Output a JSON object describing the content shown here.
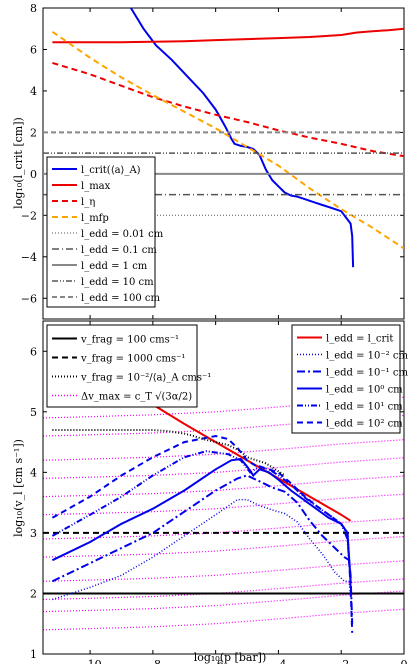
{
  "chart_data": [
    {
      "type": "line",
      "ylabel": "log₁₀(l_crit [cm])",
      "xlim": [
        -11.5,
        0
      ],
      "ylim": [
        -7,
        8
      ],
      "yticks": [
        -6,
        -4,
        -2,
        0,
        2,
        4,
        6,
        8
      ],
      "ytick_labels": [
        "−6",
        "−4",
        "−2",
        "0",
        "2",
        "4",
        "6",
        "8"
      ],
      "grid": false,
      "legend_position": "lower-left",
      "series": [
        {
          "name": "l_crit(⟨a⟩_A)",
          "color": "#0000ee",
          "dash": "",
          "width": 2,
          "x": [
            -8.7,
            -8.3,
            -7.9,
            -7.4,
            -6.9,
            -6.4,
            -6.0,
            -5.7,
            -5.5,
            -5.4,
            -5.2,
            -5.0,
            -4.8,
            -4.6,
            -4.4,
            -4.2,
            -4.0,
            -3.8,
            -3.6,
            -3.4,
            -3.2,
            -3.0,
            -2.8,
            -2.6,
            -2.4,
            -2.2,
            -2.0,
            -1.85,
            -1.75,
            -1.7,
            -1.65,
            -1.62
          ],
          "y": [
            8,
            7.0,
            6.2,
            5.5,
            4.7,
            3.9,
            3.1,
            2.3,
            1.7,
            1.45,
            1.35,
            1.3,
            1.2,
            0.9,
            0.2,
            -0.3,
            -0.6,
            -0.9,
            -1.05,
            -1.1,
            -1.2,
            -1.3,
            -1.4,
            -1.5,
            -1.6,
            -1.7,
            -1.8,
            -2.1,
            -2.3,
            -2.4,
            -3.0,
            -4.5
          ]
        },
        {
          "name": "l_max",
          "color": "#ee0000",
          "dash": "",
          "width": 2,
          "x": [
            -11.2,
            -10,
            -9,
            -8,
            -7,
            -6,
            -5,
            -4,
            -3,
            -2,
            -1.5,
            -1.0,
            -0.5,
            0
          ],
          "y": [
            6.35,
            6.35,
            6.35,
            6.37,
            6.4,
            6.45,
            6.5,
            6.55,
            6.6,
            6.7,
            6.82,
            6.88,
            6.93,
            7.0
          ]
        },
        {
          "name": "l_η",
          "color": "#ee0000",
          "dash": "6,4",
          "width": 2,
          "x": [
            -11.2,
            -10,
            -9,
            -8,
            -7,
            -6,
            -5,
            -4,
            -3,
            -2,
            -1,
            0
          ],
          "y": [
            5.35,
            4.8,
            4.25,
            3.7,
            3.25,
            2.85,
            2.5,
            2.1,
            1.75,
            1.45,
            1.1,
            0.85
          ]
        },
        {
          "name": "l_mfp",
          "color": "#ffa500",
          "dash": "6,4",
          "width": 2,
          "x": [
            -11.2,
            -10,
            -9,
            -8,
            -7,
            -6,
            -5,
            -4,
            -3,
            -2,
            -1,
            0
          ],
          "y": [
            6.85,
            5.6,
            4.65,
            3.8,
            3.0,
            2.2,
            1.3,
            0.4,
            -0.7,
            -1.7,
            -2.6,
            -3.6
          ]
        },
        {
          "name": "l_edd = 0.01 cm",
          "color": "#555555",
          "dash": "1,2",
          "width": 1,
          "x": [
            -11.5,
            0
          ],
          "y": [
            -2,
            -2
          ]
        },
        {
          "name": "l_edd = 0.1 cm",
          "color": "#555555",
          "dash": "7,3,1,3",
          "width": 1.5,
          "x": [
            -11.5,
            0
          ],
          "y": [
            -1,
            -1
          ]
        },
        {
          "name": "l_edd = 1 cm",
          "color": "#888888",
          "dash": "",
          "width": 2,
          "x": [
            -11.5,
            0
          ],
          "y": [
            0,
            0
          ]
        },
        {
          "name": "l_edd = 10 cm",
          "color": "#555555",
          "dash": "6,2,1,2,1,2",
          "width": 1.5,
          "x": [
            -11.5,
            0
          ],
          "y": [
            1,
            1
          ]
        },
        {
          "name": "l_edd = 100 cm",
          "color": "#888888",
          "dash": "5,3",
          "width": 2,
          "x": [
            -11.5,
            0
          ],
          "y": [
            2,
            2
          ]
        }
      ]
    },
    {
      "type": "line",
      "xlabel": "log₁₀(p [bar])",
      "ylabel": "log₁₀(v_l [cm s⁻¹])",
      "xlim": [
        -11.5,
        0
      ],
      "ylim": [
        1,
        6.5
      ],
      "xticks": [
        -10,
        -8,
        -6,
        -4,
        -2,
        0
      ],
      "xtick_labels": [
        "−10",
        "−8",
        "−6",
        "−4",
        "−2",
        "0"
      ],
      "yticks": [
        1,
        2,
        3,
        4,
        5,
        6
      ],
      "ytick_labels": [
        "1",
        "2",
        "3",
        "4",
        "5",
        "6"
      ],
      "grid": false,
      "legend_positions": [
        "upper-left",
        "upper-right"
      ],
      "reference_lines": [
        {
          "name": "v_frag = 100 cm s⁻¹",
          "color": "#000000",
          "dash": "",
          "width": 2,
          "y": 2
        },
        {
          "name": "v_frag = 1000 cm s⁻¹",
          "color": "#000000",
          "dash": "6,4",
          "width": 2,
          "y": 3
        },
        {
          "name": "v_frag = 10⁻²/⟨a⟩_A cm s⁻¹",
          "color": "#000000",
          "dash": "1,2",
          "width": 2
        }
      ],
      "vmax_curves": {
        "name": "Δv_max = c_T √(3α/2)",
        "color": "#ff00ff",
        "dash": "1,2",
        "width": 1.2,
        "x": [
          -11.5,
          -10,
          -8,
          -6,
          -4,
          -2,
          0
        ],
        "offsets": [
          1.4,
          1.7,
          1.9,
          2.2,
          2.6,
          2.9,
          3.3,
          3.6,
          3.9,
          4.2,
          4.6,
          4.9
        ],
        "slope_profile": [
          0,
          0.02,
          0.05,
          0.1,
          0.18,
          0.27,
          0.34
        ]
      },
      "series": [
        {
          "name": "l_edd = l_crit",
          "color": "#ee0000",
          "dash": "",
          "width": 2,
          "x": [
            -8.0,
            -7.0,
            -6.0,
            -5.0,
            -4.0,
            -3.0,
            -2.0,
            -1.7
          ],
          "y": [
            5.12,
            4.8,
            4.5,
            4.2,
            3.9,
            3.6,
            3.3,
            3.2
          ]
        },
        {
          "name": "l_edd = 10⁻² cm",
          "color": "#0000ee",
          "dash": "1,2",
          "width": 1.5,
          "x": [
            -11.2,
            -10,
            -9,
            -8,
            -7,
            -6,
            -5.3,
            -5.0,
            -4.6,
            -4.2,
            -3.8,
            -3.4,
            -3.0,
            -2.6,
            -2.2,
            -1.9,
            -1.75,
            -1.7
          ],
          "y": [
            1.9,
            2.1,
            2.3,
            2.6,
            2.95,
            3.3,
            3.55,
            3.55,
            3.45,
            3.38,
            3.32,
            3.18,
            2.9,
            2.65,
            2.35,
            2.2,
            2.2,
            1.95
          ]
        },
        {
          "name": "l_edd = 10⁻¹ cm",
          "color": "#0000ee",
          "dash": "8,3,2,3",
          "width": 2,
          "x": [
            -11.2,
            -10,
            -9,
            -8,
            -7,
            -6,
            -5.3,
            -5.0,
            -4.6,
            -4.2,
            -3.8,
            -3.4,
            -3.0,
            -2.6,
            -2.2,
            -1.9,
            -1.75,
            -1.7,
            -1.65
          ],
          "y": [
            2.2,
            2.5,
            2.75,
            3.0,
            3.35,
            3.7,
            3.9,
            3.95,
            3.85,
            3.75,
            3.68,
            3.5,
            3.2,
            2.95,
            2.75,
            2.6,
            2.55,
            2.3,
            1.5
          ]
        },
        {
          "name": "l_edd = 10⁰ cm",
          "color": "#0000ee",
          "dash": "",
          "width": 2,
          "x": [
            -11.2,
            -10,
            -9,
            -8,
            -7,
            -6,
            -5.5,
            -5.2,
            -5.0,
            -4.8,
            -4.6,
            -4.3,
            -4.0,
            -3.6,
            -3.2,
            -2.8,
            -2.4,
            -2.0,
            -1.8,
            -1.7
          ],
          "y": [
            2.55,
            2.85,
            3.15,
            3.4,
            3.7,
            4.05,
            4.2,
            4.22,
            4.1,
            3.95,
            4.05,
            4.0,
            3.88,
            3.7,
            3.55,
            3.4,
            3.25,
            3.15,
            3.0,
            2.2
          ]
        },
        {
          "name": "l_edd = 10¹ cm",
          "color": "#0000ee",
          "dash": "6,2,1,2,1,2",
          "width": 2,
          "x": [
            -11.2,
            -10,
            -9,
            -8,
            -7,
            -6.3,
            -5.6,
            -5.2,
            -4.9,
            -4.6,
            -4.3,
            -4.0,
            -3.6,
            -3.2,
            -2.8,
            -2.4,
            -2.0,
            -1.8,
            -1.7
          ],
          "y": [
            2.95,
            3.3,
            3.6,
            3.95,
            4.25,
            4.35,
            4.3,
            4.2,
            4.0,
            4.1,
            4.05,
            3.95,
            3.8,
            3.6,
            3.45,
            3.3,
            3.15,
            2.9,
            2.2
          ]
        },
        {
          "name": "l_edd = 10² cm",
          "color": "#0000ee",
          "dash": "6,4",
          "width": 2,
          "x": [
            -11.2,
            -10,
            -9,
            -8,
            -7,
            -6,
            -5.6,
            -5.3,
            -5.0,
            -4.7,
            -4.3,
            -4.0,
            -3.6,
            -3.2,
            -2.8,
            -2.4,
            -2.0,
            -1.8,
            -1.7,
            -1.65
          ],
          "y": [
            3.25,
            3.6,
            3.95,
            4.25,
            4.5,
            4.6,
            4.55,
            4.4,
            4.2,
            4.1,
            4.05,
            4.0,
            3.82,
            3.62,
            3.45,
            3.3,
            3.15,
            3.0,
            2.1,
            1.35
          ]
        },
        {
          "name": "",
          "color": "#000000",
          "dash": "1,2",
          "width": 2,
          "x": [
            -11.2,
            -10,
            -9,
            -8,
            -7.5,
            -7.0,
            -6.7,
            -6.4,
            -6.0,
            -5.6,
            -5.2,
            -5.0,
            -4.7,
            -4.4,
            -4.1,
            -3.8
          ],
          "y": [
            4.7,
            4.7,
            4.7,
            4.7,
            4.68,
            4.64,
            4.6,
            4.55,
            4.5,
            4.45,
            4.35,
            4.25,
            4.2,
            4.15,
            4.05,
            3.95
          ]
        }
      ]
    }
  ],
  "legend_top": [
    {
      "label": "l_crit(⟨a⟩_A)",
      "color": "#0000ee",
      "dash": "",
      "width": 2
    },
    {
      "label": "l_max",
      "color": "#ee0000",
      "dash": "",
      "width": 2
    },
    {
      "label": "l_η",
      "color": "#ee0000",
      "dash": "6,4",
      "width": 2
    },
    {
      "label": "l_mfp",
      "color": "#ffa500",
      "dash": "6,4",
      "width": 2
    },
    {
      "label": "l_edd = 0.01 cm",
      "color": "#555555",
      "dash": "1,2",
      "width": 1
    },
    {
      "label": "l_edd = 0.1 cm",
      "color": "#555555",
      "dash": "7,3,1,3",
      "width": 1.5
    },
    {
      "label": "l_edd = 1 cm",
      "color": "#888888",
      "dash": "",
      "width": 2
    },
    {
      "label": "l_edd = 10 cm",
      "color": "#555555",
      "dash": "6,2,1,2,1,2",
      "width": 1.5
    },
    {
      "label": "l_edd = 100 cm",
      "color": "#888888",
      "dash": "5,3",
      "width": 2
    }
  ],
  "legend_bottom_left": [
    {
      "label": "v_frag = 100 cms⁻¹",
      "color": "#000000",
      "dash": "",
      "width": 2
    },
    {
      "label": "v_frag = 1000 cms⁻¹",
      "color": "#000000",
      "dash": "6,4",
      "width": 2
    },
    {
      "label": "v_frag = 10⁻²/⟨a⟩_A cms⁻¹",
      "color": "#000000",
      "dash": "1,2",
      "width": 2
    },
    {
      "label": "Δv_max = c_T √(3α/2)",
      "color": "#ff00ff",
      "dash": "1,2",
      "width": 1.5
    }
  ],
  "legend_bottom_right": [
    {
      "label": "l_edd = l_crit",
      "color": "#ee0000",
      "dash": "",
      "width": 2
    },
    {
      "label": "l_edd = 10⁻² cm",
      "color": "#0000ee",
      "dash": "1,2",
      "width": 1.5
    },
    {
      "label": "l_edd = 10⁻¹ cm",
      "color": "#0000ee",
      "dash": "8,3,2,3",
      "width": 2
    },
    {
      "label": "l_edd = 10⁰ cm",
      "color": "#0000ee",
      "dash": "",
      "width": 2
    },
    {
      "label": "l_edd = 10¹ cm",
      "color": "#0000ee",
      "dash": "6,2,1,2,1,2",
      "width": 2
    },
    {
      "label": "l_edd = 10² cm",
      "color": "#0000ee",
      "dash": "6,4",
      "width": 2
    }
  ]
}
